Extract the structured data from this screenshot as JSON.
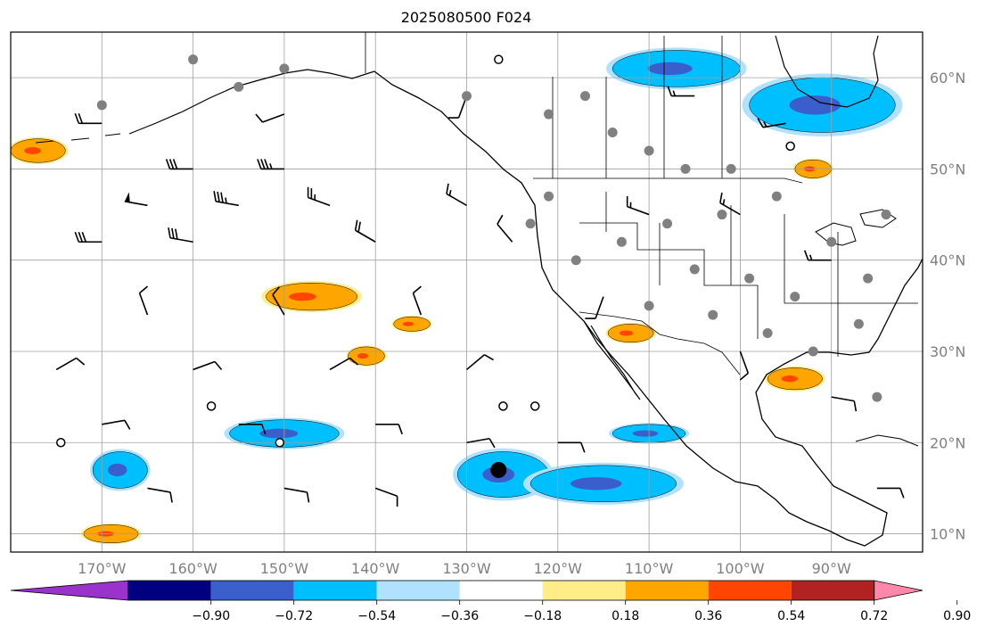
{
  "title": "2025080500 F024",
  "lat_labels": [
    "60°N",
    "50°N",
    "40°N",
    "30°N",
    "20°N",
    "10°N"
  ],
  "lat_values": [
    60,
    50,
    40,
    30,
    20,
    10
  ],
  "lon_labels": [
    "170°W",
    "160°W",
    "150°W",
    "140°W",
    "130°W",
    "120°W",
    "110°W",
    "100°W",
    "90°W"
  ],
  "lon_values": [
    -170,
    -160,
    -150,
    -140,
    -130,
    -120,
    -110,
    -100,
    -90
  ],
  "extent": {
    "lon": [
      -180,
      -80
    ],
    "lat": [
      8,
      65
    ]
  },
  "colorbar": {
    "tick_labels": [
      "−0.90",
      "−0.72",
      "−0.54",
      "−0.36",
      "−0.18",
      "0.18",
      "0.36",
      "0.54",
      "0.72",
      "0.90"
    ],
    "bins": [
      {
        "color": "#9933cc"
      },
      {
        "color": "#000080"
      },
      {
        "color": "#3a5fcd"
      },
      {
        "color": "#00bfff"
      },
      {
        "color": "#b0e2ff"
      },
      {
        "color": "#ffffff"
      },
      {
        "color": "#ffee88"
      },
      {
        "color": "#ffa500"
      },
      {
        "color": "#ff4500"
      },
      {
        "color": "#b22222"
      },
      {
        "color": "#ff88aa"
      }
    ]
  },
  "colors": {
    "grid": "#a0a0a0",
    "coast": "#000000",
    "station": "#808080",
    "blue": "#00bfff",
    "light_blue": "#b0e2ff",
    "dark_blue": "#3a5fcd",
    "orange": "#ffa500",
    "yellow": "#ffee88",
    "red": "#ff4500",
    "purple": "#5050d0"
  },
  "shaded_areas": [
    {
      "kind": "blue",
      "lon": -126,
      "lat": 16.5,
      "rlon": 5,
      "rlat": 2.5
    },
    {
      "kind": "blue",
      "lon": -115,
      "lat": 15.5,
      "rlon": 8,
      "rlat": 2
    },
    {
      "kind": "blue",
      "lon": -110,
      "lat": 21,
      "rlon": 4,
      "rlat": 1
    },
    {
      "kind": "blue",
      "lon": -150,
      "lat": 21,
      "rlon": 6,
      "rlat": 1.5
    },
    {
      "kind": "blue",
      "lon": -168,
      "lat": 17,
      "rlon": 3,
      "rlat": 2
    },
    {
      "kind": "blue",
      "lon": -107,
      "lat": 61,
      "rlon": 7,
      "rlat": 2
    },
    {
      "kind": "blue",
      "lon": -91,
      "lat": 57,
      "rlon": 8,
      "rlat": 3
    },
    {
      "kind": "orange",
      "lon": -147,
      "lat": 36,
      "rlon": 5,
      "rlat": 1.5
    },
    {
      "kind": "orange",
      "lon": -141,
      "lat": 29.5,
      "rlon": 2,
      "rlat": 1
    },
    {
      "kind": "orange",
      "lon": -136,
      "lat": 33,
      "rlon": 2,
      "rlat": 0.8
    },
    {
      "kind": "orange",
      "lon": -169,
      "lat": 10,
      "rlon": 3,
      "rlat": 1
    },
    {
      "kind": "orange",
      "lon": -94,
      "lat": 27,
      "rlon": 3,
      "rlat": 1.2
    },
    {
      "kind": "orange",
      "lon": -112,
      "lat": 32,
      "rlon": 2.5,
      "rlat": 1
    },
    {
      "kind": "orange",
      "lon": -92,
      "lat": 50,
      "rlon": 2,
      "rlat": 1
    },
    {
      "kind": "orange",
      "lon": -177,
      "lat": 52,
      "rlon": 3,
      "rlat": 1.3
    }
  ],
  "stations": [
    {
      "lon": -117,
      "lat": 58
    },
    {
      "lon": -114,
      "lat": 54
    },
    {
      "lon": -110,
      "lat": 52
    },
    {
      "lon": -106,
      "lat": 50
    },
    {
      "lon": -101,
      "lat": 50
    },
    {
      "lon": -96,
      "lat": 47
    },
    {
      "lon": -102,
      "lat": 45
    },
    {
      "lon": -108,
      "lat": 44
    },
    {
      "lon": -113,
      "lat": 42
    },
    {
      "lon": -118,
      "lat": 40
    },
    {
      "lon": -105,
      "lat": 39
    },
    {
      "lon": -99,
      "lat": 38
    },
    {
      "lon": -94,
      "lat": 36
    },
    {
      "lon": -103,
      "lat": 34
    },
    {
      "lon": -110,
      "lat": 35
    },
    {
      "lon": -97,
      "lat": 32
    },
    {
      "lon": -92,
      "lat": 30
    },
    {
      "lon": -87,
      "lat": 33
    },
    {
      "lon": -86,
      "lat": 38
    },
    {
      "lon": -90,
      "lat": 42
    },
    {
      "lon": -84,
      "lat": 45
    },
    {
      "lon": -123,
      "lat": 44
    },
    {
      "lon": -121,
      "lat": 47
    },
    {
      "lon": -121,
      "lat": 56
    },
    {
      "lon": -130,
      "lat": 58
    },
    {
      "lon": -150,
      "lat": 61
    },
    {
      "lon": -160,
      "lat": 62
    },
    {
      "lon": -170,
      "lat": 57
    },
    {
      "lon": -155,
      "lat": 59
    },
    {
      "lon": -85,
      "lat": 25
    }
  ],
  "open_circles": [
    {
      "lon": -126.5,
      "lat": 62
    },
    {
      "lon": -158,
      "lat": 24
    },
    {
      "lon": -126,
      "lat": 24
    },
    {
      "lon": -122.5,
      "lat": 24
    },
    {
      "lon": -174.5,
      "lat": 20
    },
    {
      "lon": -150.5,
      "lat": 20
    },
    {
      "lon": -94.5,
      "lat": 52.5
    }
  ],
  "big_dot": {
    "lon": -126.5,
    "lat": 17
  },
  "wind_barbs": [
    {
      "lon": -170,
      "lat": 55,
      "deg": 270,
      "knots": 20
    },
    {
      "lon": -160,
      "lat": 50,
      "deg": 270,
      "knots": 30
    },
    {
      "lon": -150,
      "lat": 50,
      "deg": 270,
      "knots": 35
    },
    {
      "lon": -165,
      "lat": 46,
      "deg": 280,
      "knots": 50
    },
    {
      "lon": -155,
      "lat": 46,
      "deg": 280,
      "knots": 35
    },
    {
      "lon": -145,
      "lat": 46,
      "deg": 290,
      "knots": 25
    },
    {
      "lon": -170,
      "lat": 42,
      "deg": 270,
      "knots": 30
    },
    {
      "lon": -160,
      "lat": 42,
      "deg": 280,
      "knots": 30
    },
    {
      "lon": -140,
      "lat": 42,
      "deg": 300,
      "knots": 20
    },
    {
      "lon": -130,
      "lat": 46,
      "deg": 300,
      "knots": 15
    },
    {
      "lon": -125,
      "lat": 42,
      "deg": 320,
      "knots": 10
    },
    {
      "lon": -165,
      "lat": 34,
      "deg": 340,
      "knots": 10
    },
    {
      "lon": -150,
      "lat": 34,
      "deg": 330,
      "knots": 10
    },
    {
      "lon": -135,
      "lat": 34,
      "deg": 340,
      "knots": 10
    },
    {
      "lon": -175,
      "lat": 28,
      "deg": 60,
      "knots": 10
    },
    {
      "lon": -160,
      "lat": 28,
      "deg": 70,
      "knots": 10
    },
    {
      "lon": -145,
      "lat": 28,
      "deg": 60,
      "knots": 10
    },
    {
      "lon": -130,
      "lat": 28,
      "deg": 50,
      "knots": 10
    },
    {
      "lon": -170,
      "lat": 22,
      "deg": 80,
      "knots": 10
    },
    {
      "lon": -155,
      "lat": 22,
      "deg": 90,
      "knots": 10
    },
    {
      "lon": -140,
      "lat": 22,
      "deg": 90,
      "knots": 10
    },
    {
      "lon": -130,
      "lat": 20,
      "deg": 80,
      "knots": 10
    },
    {
      "lon": -120,
      "lat": 20,
      "deg": 90,
      "knots": 10
    },
    {
      "lon": -165,
      "lat": 15,
      "deg": 100,
      "knots": 10
    },
    {
      "lon": -150,
      "lat": 15,
      "deg": 100,
      "knots": 10
    },
    {
      "lon": -140,
      "lat": 15,
      "deg": 110,
      "knots": 10
    },
    {
      "lon": -110,
      "lat": 45,
      "deg": 290,
      "knots": 15
    },
    {
      "lon": -100,
      "lat": 45,
      "deg": 300,
      "knots": 15
    },
    {
      "lon": -90,
      "lat": 40,
      "deg": 270,
      "knots": 15
    },
    {
      "lon": -95,
      "lat": 55,
      "deg": 260,
      "knots": 15
    },
    {
      "lon": -105,
      "lat": 58,
      "deg": 270,
      "knots": 15
    },
    {
      "lon": -130,
      "lat": 58,
      "deg": 200,
      "knots": 10
    },
    {
      "lon": -150,
      "lat": 56,
      "deg": 250,
      "knots": 10
    },
    {
      "lon": -115,
      "lat": 36,
      "deg": 200,
      "knots": 10
    },
    {
      "lon": -100,
      "lat": 30,
      "deg": 160,
      "knots": 10
    },
    {
      "lon": -90,
      "lat": 25,
      "deg": 100,
      "knots": 10
    },
    {
      "lon": -85,
      "lat": 15,
      "deg": 90,
      "knots": 10
    }
  ]
}
